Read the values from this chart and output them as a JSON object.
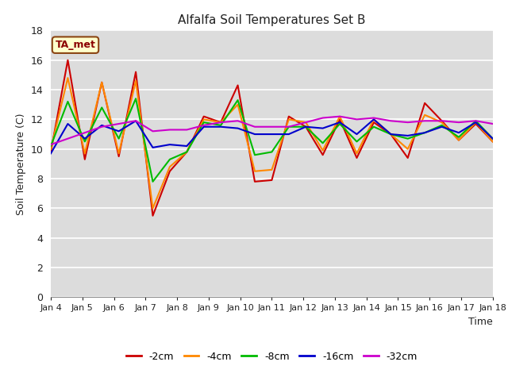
{
  "title": "Alfalfa Soil Temperatures Set B",
  "xlabel": "Time",
  "ylabel": "Soil Temperature (C)",
  "annotation": "TA_met",
  "xlim": [
    0,
    14
  ],
  "ylim": [
    0,
    18
  ],
  "yticks": [
    0,
    2,
    4,
    6,
    8,
    10,
    12,
    14,
    16,
    18
  ],
  "xtick_labels": [
    "Jan 4",
    "Jan 5",
    "Jan 6",
    "Jan 7",
    "Jan 8",
    "Jan 9",
    "Jan 10",
    "Jan 11",
    "Jan 12",
    "Jan 13",
    "Jan 14",
    "Jan 15",
    "Jan 16",
    "Jan 17",
    "Jan 18"
  ],
  "plot_bg": "#dcdcdc",
  "fig_bg": "#ffffff",
  "series": {
    "-2cm": {
      "color": "#cc0000",
      "values": [
        9.8,
        16.0,
        9.3,
        14.5,
        9.5,
        15.2,
        5.5,
        8.5,
        9.8,
        12.2,
        11.8,
        14.3,
        7.8,
        7.9,
        12.2,
        11.5,
        9.6,
        12.0,
        9.4,
        11.8,
        11.0,
        9.4,
        13.1,
        11.9,
        10.6,
        11.7,
        10.5
      ]
    },
    "-4cm": {
      "color": "#ff8800",
      "values": [
        10.0,
        14.8,
        9.7,
        14.5,
        9.7,
        14.6,
        6.0,
        8.8,
        9.8,
        12.0,
        11.8,
        13.0,
        8.5,
        8.6,
        12.0,
        11.8,
        9.9,
        12.2,
        9.7,
        12.0,
        11.0,
        10.0,
        12.3,
        11.8,
        10.6,
        11.8,
        10.5
      ]
    },
    "-8cm": {
      "color": "#00bb00",
      "values": [
        10.2,
        13.2,
        10.5,
        12.8,
        10.7,
        13.4,
        7.8,
        9.3,
        9.8,
        11.8,
        11.6,
        13.3,
        9.6,
        9.8,
        11.5,
        11.5,
        10.4,
        11.7,
        10.5,
        11.5,
        11.0,
        10.7,
        11.1,
        11.6,
        10.8,
        11.9,
        10.7
      ]
    },
    "-16cm": {
      "color": "#0000cc",
      "values": [
        9.7,
        11.7,
        10.7,
        11.6,
        11.2,
        11.9,
        10.1,
        10.3,
        10.2,
        11.5,
        11.5,
        11.4,
        11.0,
        11.0,
        11.0,
        11.5,
        11.4,
        11.8,
        11.0,
        12.0,
        11.0,
        10.9,
        11.1,
        11.5,
        11.1,
        11.8,
        10.7
      ]
    },
    "-32cm": {
      "color": "#cc00cc",
      "values": [
        10.3,
        10.7,
        11.1,
        11.5,
        11.7,
        11.9,
        11.2,
        11.3,
        11.3,
        11.6,
        11.8,
        11.9,
        11.5,
        11.5,
        11.5,
        11.8,
        12.1,
        12.2,
        12.0,
        12.1,
        11.9,
        11.8,
        11.9,
        11.9,
        11.8,
        11.9,
        11.7
      ]
    }
  }
}
